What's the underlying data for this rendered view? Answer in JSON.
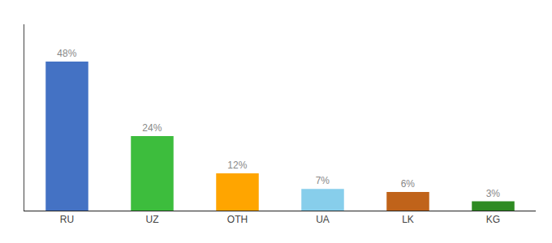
{
  "chart_data": {
    "type": "bar",
    "categories": [
      "RU",
      "UZ",
      "OTH",
      "UA",
      "LK",
      "KG"
    ],
    "values": [
      48,
      24,
      12,
      7,
      6,
      3
    ],
    "value_labels": [
      "48%",
      "24%",
      "12%",
      "7%",
      "6%",
      "3%"
    ],
    "data_labels": true,
    "colors": [
      "#4472C4",
      "#3DBD3D",
      "#FFA500",
      "#87CEEB",
      "#C0631A",
      "#2E8B22"
    ],
    "ylim": [
      0,
      60
    ],
    "grid": false,
    "tick_labels": "x"
  }
}
